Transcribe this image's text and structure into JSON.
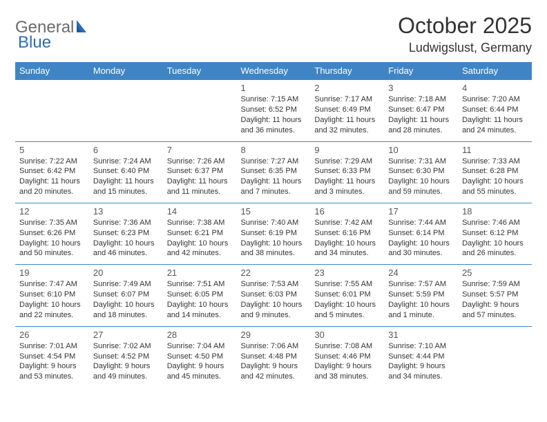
{
  "logo": {
    "part1": "General",
    "part2": "Blue"
  },
  "title": "October 2025",
  "location": "Ludwigslust, Germany",
  "colors": {
    "header_bg": "#3f85c6",
    "header_text": "#ffffff",
    "border": "#3f85c6",
    "logo_gray": "#6a6a6a",
    "logo_blue": "#2a6db3",
    "text": "#333333",
    "daynum": "#555555",
    "background": "#ffffff"
  },
  "typography": {
    "title_fontsize": 32,
    "location_fontsize": 18,
    "logo_fontsize": 24,
    "header_fontsize": 13,
    "daynum_fontsize": 13,
    "info_fontsize": 11
  },
  "daysOfWeek": [
    "Sunday",
    "Monday",
    "Tuesday",
    "Wednesday",
    "Thursday",
    "Friday",
    "Saturday"
  ],
  "weeks": [
    [
      null,
      null,
      null,
      {
        "n": "1",
        "sunrise": "7:15 AM",
        "sunset": "6:52 PM",
        "daylight": "11 hours and 36 minutes."
      },
      {
        "n": "2",
        "sunrise": "7:17 AM",
        "sunset": "6:49 PM",
        "daylight": "11 hours and 32 minutes."
      },
      {
        "n": "3",
        "sunrise": "7:18 AM",
        "sunset": "6:47 PM",
        "daylight": "11 hours and 28 minutes."
      },
      {
        "n": "4",
        "sunrise": "7:20 AM",
        "sunset": "6:44 PM",
        "daylight": "11 hours and 24 minutes."
      }
    ],
    [
      {
        "n": "5",
        "sunrise": "7:22 AM",
        "sunset": "6:42 PM",
        "daylight": "11 hours and 20 minutes."
      },
      {
        "n": "6",
        "sunrise": "7:24 AM",
        "sunset": "6:40 PM",
        "daylight": "11 hours and 15 minutes."
      },
      {
        "n": "7",
        "sunrise": "7:26 AM",
        "sunset": "6:37 PM",
        "daylight": "11 hours and 11 minutes."
      },
      {
        "n": "8",
        "sunrise": "7:27 AM",
        "sunset": "6:35 PM",
        "daylight": "11 hours and 7 minutes."
      },
      {
        "n": "9",
        "sunrise": "7:29 AM",
        "sunset": "6:33 PM",
        "daylight": "11 hours and 3 minutes."
      },
      {
        "n": "10",
        "sunrise": "7:31 AM",
        "sunset": "6:30 PM",
        "daylight": "10 hours and 59 minutes."
      },
      {
        "n": "11",
        "sunrise": "7:33 AM",
        "sunset": "6:28 PM",
        "daylight": "10 hours and 55 minutes."
      }
    ],
    [
      {
        "n": "12",
        "sunrise": "7:35 AM",
        "sunset": "6:26 PM",
        "daylight": "10 hours and 50 minutes."
      },
      {
        "n": "13",
        "sunrise": "7:36 AM",
        "sunset": "6:23 PM",
        "daylight": "10 hours and 46 minutes."
      },
      {
        "n": "14",
        "sunrise": "7:38 AM",
        "sunset": "6:21 PM",
        "daylight": "10 hours and 42 minutes."
      },
      {
        "n": "15",
        "sunrise": "7:40 AM",
        "sunset": "6:19 PM",
        "daylight": "10 hours and 38 minutes."
      },
      {
        "n": "16",
        "sunrise": "7:42 AM",
        "sunset": "6:16 PM",
        "daylight": "10 hours and 34 minutes."
      },
      {
        "n": "17",
        "sunrise": "7:44 AM",
        "sunset": "6:14 PM",
        "daylight": "10 hours and 30 minutes."
      },
      {
        "n": "18",
        "sunrise": "7:46 AM",
        "sunset": "6:12 PM",
        "daylight": "10 hours and 26 minutes."
      }
    ],
    [
      {
        "n": "19",
        "sunrise": "7:47 AM",
        "sunset": "6:10 PM",
        "daylight": "10 hours and 22 minutes."
      },
      {
        "n": "20",
        "sunrise": "7:49 AM",
        "sunset": "6:07 PM",
        "daylight": "10 hours and 18 minutes."
      },
      {
        "n": "21",
        "sunrise": "7:51 AM",
        "sunset": "6:05 PM",
        "daylight": "10 hours and 14 minutes."
      },
      {
        "n": "22",
        "sunrise": "7:53 AM",
        "sunset": "6:03 PM",
        "daylight": "10 hours and 9 minutes."
      },
      {
        "n": "23",
        "sunrise": "7:55 AM",
        "sunset": "6:01 PM",
        "daylight": "10 hours and 5 minutes."
      },
      {
        "n": "24",
        "sunrise": "7:57 AM",
        "sunset": "5:59 PM",
        "daylight": "10 hours and 1 minute."
      },
      {
        "n": "25",
        "sunrise": "7:59 AM",
        "sunset": "5:57 PM",
        "daylight": "9 hours and 57 minutes."
      }
    ],
    [
      {
        "n": "26",
        "sunrise": "7:01 AM",
        "sunset": "4:54 PM",
        "daylight": "9 hours and 53 minutes."
      },
      {
        "n": "27",
        "sunrise": "7:02 AM",
        "sunset": "4:52 PM",
        "daylight": "9 hours and 49 minutes."
      },
      {
        "n": "28",
        "sunrise": "7:04 AM",
        "sunset": "4:50 PM",
        "daylight": "9 hours and 45 minutes."
      },
      {
        "n": "29",
        "sunrise": "7:06 AM",
        "sunset": "4:48 PM",
        "daylight": "9 hours and 42 minutes."
      },
      {
        "n": "30",
        "sunrise": "7:08 AM",
        "sunset": "4:46 PM",
        "daylight": "9 hours and 38 minutes."
      },
      {
        "n": "31",
        "sunrise": "7:10 AM",
        "sunset": "4:44 PM",
        "daylight": "9 hours and 34 minutes."
      },
      null
    ]
  ],
  "labels": {
    "sunrise": "Sunrise:",
    "sunset": "Sunset:",
    "daylight": "Daylight:"
  }
}
